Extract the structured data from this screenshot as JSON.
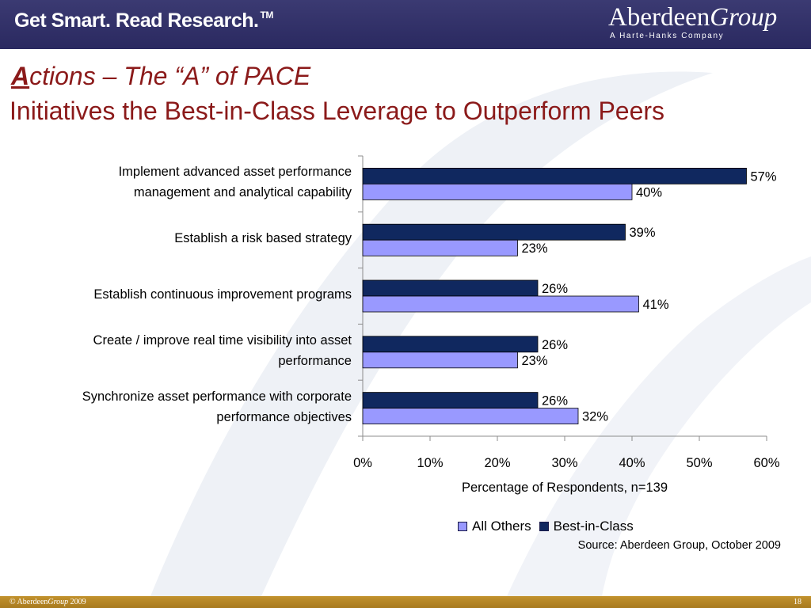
{
  "header": {
    "tagline": "Get Smart. Read Research.",
    "tagline_mark": "TM",
    "logo_name": "Aberdeen",
    "logo_group": "Group",
    "logo_sub": "A Harte-Hanks Company"
  },
  "title": {
    "cap": "A",
    "line1_rest": "ctions – The “A” of PACE",
    "line2": "Initiatives the Best-in-Class Leverage to Outperform Peers"
  },
  "chart_data": {
    "type": "bar",
    "orientation": "horizontal",
    "categories": [
      [
        "Implement advanced asset performance",
        "management and analytical capability"
      ],
      [
        "Establish a risk based strategy"
      ],
      [
        "Establish continuous improvement programs"
      ],
      [
        "Create / improve real time visibility into asset",
        "performance"
      ],
      [
        "Synchronize asset performance with corporate",
        "performance objectives"
      ]
    ],
    "series": [
      {
        "name": "Best-in-Class",
        "values": [
          57,
          39,
          26,
          26,
          26
        ],
        "color": "#10285f"
      },
      {
        "name": "All Others",
        "values": [
          40,
          23,
          41,
          23,
          32
        ],
        "color": "#9999ff"
      }
    ],
    "xlabel": "Percentage of Respondents, n=139",
    "xlim": [
      0,
      60
    ],
    "xticks": [
      "0%",
      "10%",
      "20%",
      "30%",
      "40%",
      "50%",
      "60%"
    ],
    "legend_order": [
      "All Others",
      "Best-in-Class"
    ],
    "legend_position": "bottom",
    "grid": false
  },
  "source": "Source: Aberdeen Group, October 2009",
  "footer": {
    "copyright_prefix": "© Aberdeen",
    "copyright_group": "Group",
    "copyright_year": " 2009",
    "page_number": "18"
  }
}
